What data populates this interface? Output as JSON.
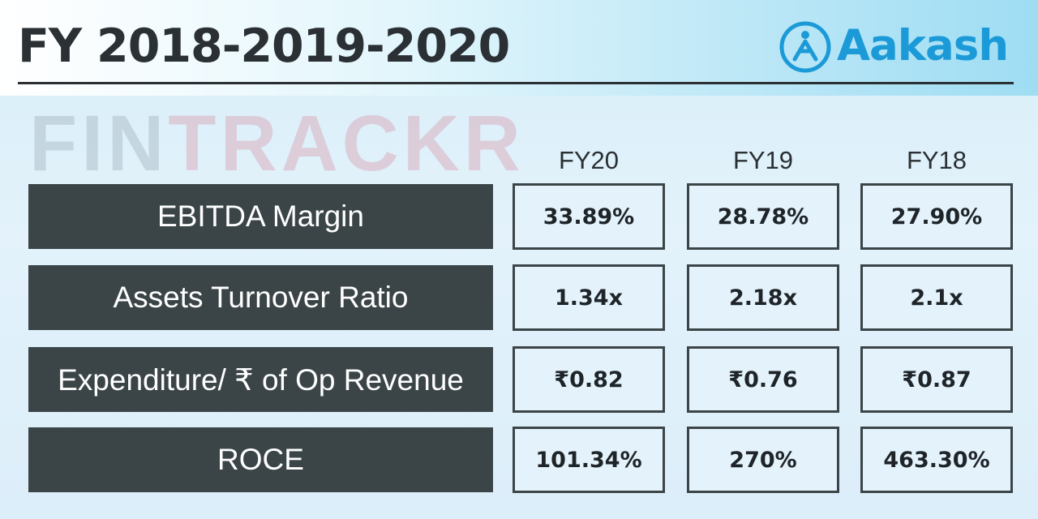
{
  "header": {
    "title": "FY 2018-2019-2020"
  },
  "brand": {
    "logo_text": "Aakash",
    "logo_color": "#1c9ad8"
  },
  "watermark": {
    "part1": "FIN",
    "part2": "TRA",
    "part3": "C",
    "part4": "KR"
  },
  "colors": {
    "label_bg": "#3b4548",
    "cell_border": "#3b4548",
    "text_dark": "#2a3033"
  },
  "chart_data": {
    "type": "table",
    "title": "FY 2018-2019-2020",
    "columns": [
      "FY20",
      "FY19",
      "FY18"
    ],
    "rows": [
      {
        "label": "EBITDA Margin",
        "values": [
          "33.89%",
          "28.78%",
          "27.90%"
        ]
      },
      {
        "label": "Assets Turnover Ratio",
        "values": [
          "1.34x",
          "2.18x",
          "2.1x"
        ]
      },
      {
        "label": "Expenditure/ ₹ of Op Revenue",
        "values": [
          "₹0.82",
          "₹0.76",
          "₹0.87"
        ]
      },
      {
        "label": "ROCE",
        "values": [
          "101.34%",
          "270%",
          "463.30%"
        ]
      }
    ]
  }
}
